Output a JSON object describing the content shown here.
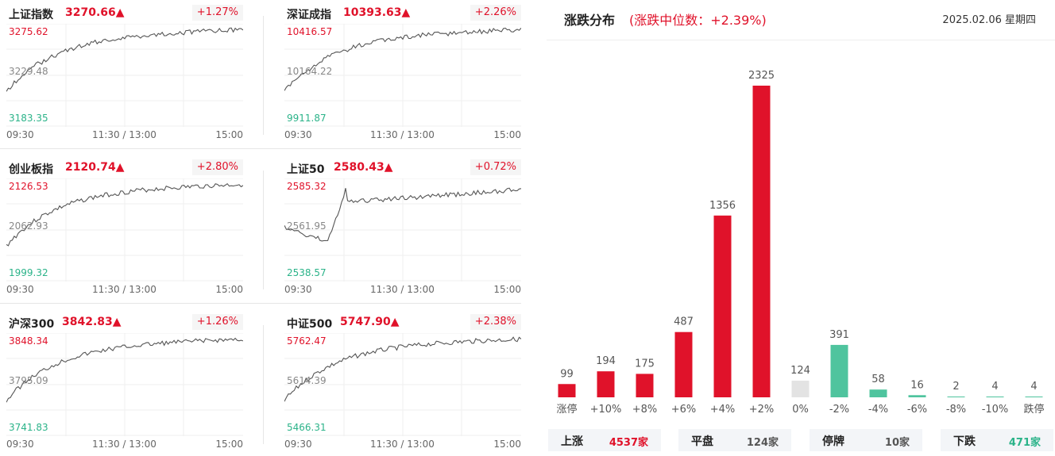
{
  "indices": [
    {
      "name": "上证指数",
      "value": "3270.66▲",
      "change": "+1.27%",
      "y_high": "3275.62",
      "y_mid": "3229.48",
      "y_low": "3183.35",
      "seed": 1
    },
    {
      "name": "深证成指",
      "value": "10393.63▲",
      "change": "+2.26%",
      "y_high": "10416.57",
      "y_mid": "10164.22",
      "y_low": "9911.87",
      "seed": 2
    },
    {
      "name": "创业板指",
      "value": "2120.74▲",
      "change": "+2.80%",
      "y_high": "2126.53",
      "y_mid": "2062.93",
      "y_low": "1999.32",
      "seed": 3
    },
    {
      "name": "上证50",
      "value": "2580.43▲",
      "change": "+0.72%",
      "y_high": "2585.32",
      "y_mid": "2561.95",
      "y_low": "2538.57",
      "seed": 4
    },
    {
      "name": "沪深300",
      "value": "3842.83▲",
      "change": "+1.26%",
      "y_high": "3848.34",
      "y_mid": "3795.09",
      "y_low": "3741.83",
      "seed": 5
    },
    {
      "name": "中证500",
      "value": "5747.90▲",
      "change": "+2.38%",
      "y_high": "5762.47",
      "y_mid": "5614.39",
      "y_low": "5466.31",
      "seed": 6
    }
  ],
  "x_labels": [
    "09:30",
    "11:30 / 13:00",
    "15:00"
  ],
  "distribution": {
    "title": "涨跌分布",
    "subtitle": "(涨跌中位数：+2.39%)",
    "date": "2025.02.06 星期四"
  },
  "chart_data": {
    "type": "bar",
    "categories": [
      "涨停",
      "+10%",
      "+8%",
      "+6%",
      "+4%",
      "+2%",
      "0%",
      "-2%",
      "-4%",
      "-6%",
      "-8%",
      "-10%",
      "跌停"
    ],
    "values": [
      99,
      194,
      175,
      487,
      1356,
      2325,
      124,
      391,
      58,
      16,
      2,
      4,
      4
    ],
    "colors": [
      "#e0122a",
      "#e0122a",
      "#e0122a",
      "#e0122a",
      "#e0122a",
      "#e0122a",
      "#e3e3e3",
      "#4fc49e",
      "#4fc49e",
      "#4fc49e",
      "#4fc49e",
      "#4fc49e",
      "#4fc49e"
    ]
  },
  "summary": [
    {
      "label": "上涨",
      "value": "4537家",
      "color": "#e0122a"
    },
    {
      "label": "平盘",
      "value": "124家",
      "color": "#555555"
    },
    {
      "label": "停牌",
      "value": "10家",
      "color": "#555555"
    },
    {
      "label": "下跌",
      "value": "471家",
      "color": "#2bb389"
    }
  ]
}
